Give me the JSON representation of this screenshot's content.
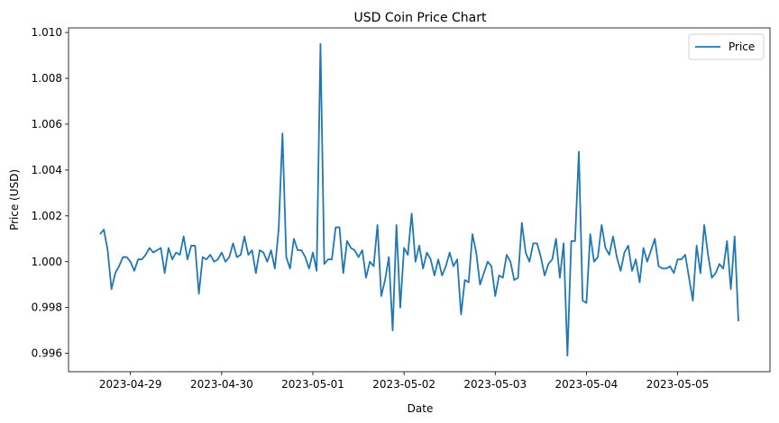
{
  "chart_data": {
    "type": "line",
    "title": "USD Coin Price Chart",
    "xlabel": "Date",
    "ylabel": "Price (USD)",
    "grid": false,
    "legend": "top-right",
    "x_start": "2023-04-28 16:00",
    "x_step_hours": 1,
    "x_ticks": [
      "2023-04-29",
      "2023-04-30",
      "2023-05-01",
      "2023-05-02",
      "2023-05-03",
      "2023-05-04",
      "2023-05-05"
    ],
    "ylim": [
      0.9952,
      1.0102
    ],
    "y_ticks": [
      0.996,
      0.998,
      1.0,
      1.002,
      1.004,
      1.006,
      1.008,
      1.01
    ],
    "series": [
      {
        "name": "Price",
        "color": "#1f77b4",
        "values": [
          1.0012,
          1.0014,
          1.0005,
          0.9988,
          0.9995,
          0.9998,
          1.0002,
          1.0002,
          1.0,
          0.9996,
          1.0001,
          1.0001,
          1.0003,
          1.0006,
          1.0004,
          1.0005,
          1.0006,
          0.9995,
          1.0006,
          1.0001,
          1.0004,
          1.0003,
          1.0011,
          1.0001,
          1.0007,
          1.0007,
          0.9986,
          1.0002,
          1.0001,
          1.0003,
          1.0,
          1.0001,
          1.0004,
          1.0,
          1.0002,
          1.0008,
          1.0002,
          1.0003,
          1.0011,
          1.0003,
          1.0005,
          0.9995,
          1.0005,
          1.0004,
          1.0,
          1.0005,
          0.9997,
          1.0014,
          1.0056,
          1.0002,
          0.9997,
          1.001,
          1.0005,
          1.0005,
          1.0002,
          0.9997,
          1.0004,
          0.9996,
          1.0095,
          0.9999,
          1.0001,
          1.0001,
          1.0015,
          1.0015,
          0.9995,
          1.0009,
          1.0006,
          1.0005,
          1.0002,
          1.0005,
          0.9993,
          1.0,
          0.9998,
          1.0016,
          0.9985,
          0.9992,
          1.0002,
          0.997,
          1.0016,
          0.998,
          1.0006,
          1.0003,
          1.0021,
          1.0,
          1.0007,
          0.9997,
          1.0004,
          1.0001,
          0.9994,
          1.0001,
          0.9994,
          0.9998,
          1.0004,
          0.9998,
          1.0001,
          0.9977,
          0.9992,
          0.9991,
          1.0012,
          1.0004,
          0.999,
          0.9995,
          1.0,
          0.9998,
          0.9985,
          0.9994,
          0.9993,
          1.0003,
          1.0,
          0.9992,
          0.9993,
          1.0017,
          1.0004,
          1.0,
          1.0008,
          1.0008,
          1.0002,
          0.9994,
          0.9999,
          1.0001,
          1.001,
          0.9993,
          1.0008,
          0.9959,
          1.0009,
          1.0009,
          1.0048,
          0.9983,
          0.9982,
          1.0012,
          1.0,
          1.0002,
          1.0016,
          1.0006,
          1.0003,
          1.0011,
          1.0002,
          0.9996,
          1.0004,
          1.0007,
          0.9996,
          1.0001,
          0.9991,
          1.0006,
          1.0,
          1.0005,
          1.001,
          0.9998,
          0.9997,
          0.9997,
          0.9998,
          0.9995,
          1.0001,
          1.0001,
          1.0003,
          0.9993,
          0.9983,
          1.0007,
          0.9995,
          1.0016,
          1.0003,
          0.9993,
          0.9995,
          0.9999,
          0.9997,
          1.0009,
          0.9988,
          1.0011,
          0.9974
        ]
      }
    ]
  }
}
